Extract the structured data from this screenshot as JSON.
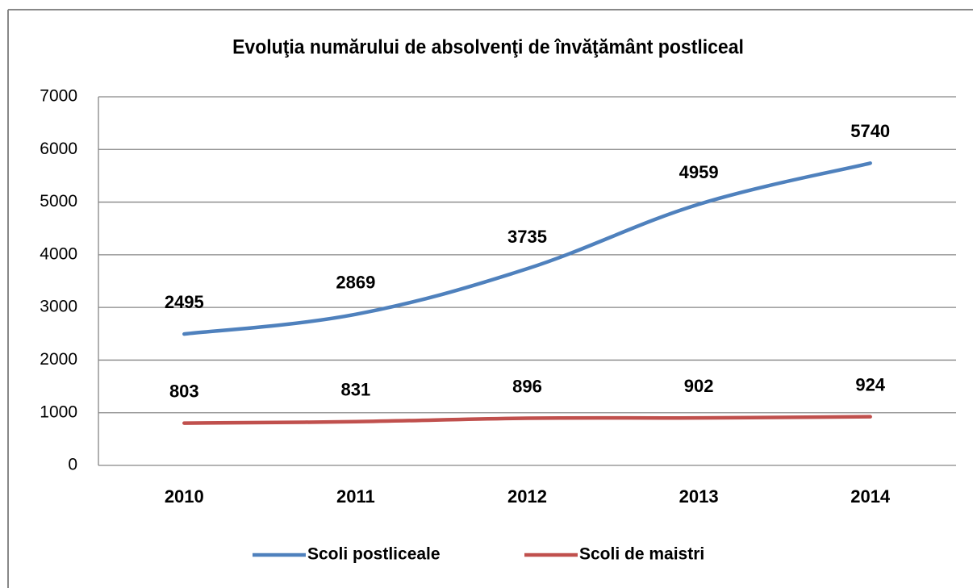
{
  "chart_data": {
    "type": "line",
    "title": "Evoluţia numărului de absolvenţi de învăţământ postliceal",
    "categories": [
      "2010",
      "2011",
      "2012",
      "2013",
      "2014"
    ],
    "series": [
      {
        "name": "Scoli postliceale",
        "color": "#4f81bd",
        "values": [
          2495,
          2869,
          3735,
          4959,
          5740
        ]
      },
      {
        "name": "Scoli de maistri",
        "color": "#c0504d",
        "values": [
          803,
          831,
          896,
          902,
          924
        ]
      }
    ],
    "ylim": [
      0,
      7000
    ],
    "yticks": [
      0,
      1000,
      2000,
      3000,
      4000,
      5000,
      6000,
      7000
    ],
    "grid": true,
    "legend": "bottom"
  }
}
